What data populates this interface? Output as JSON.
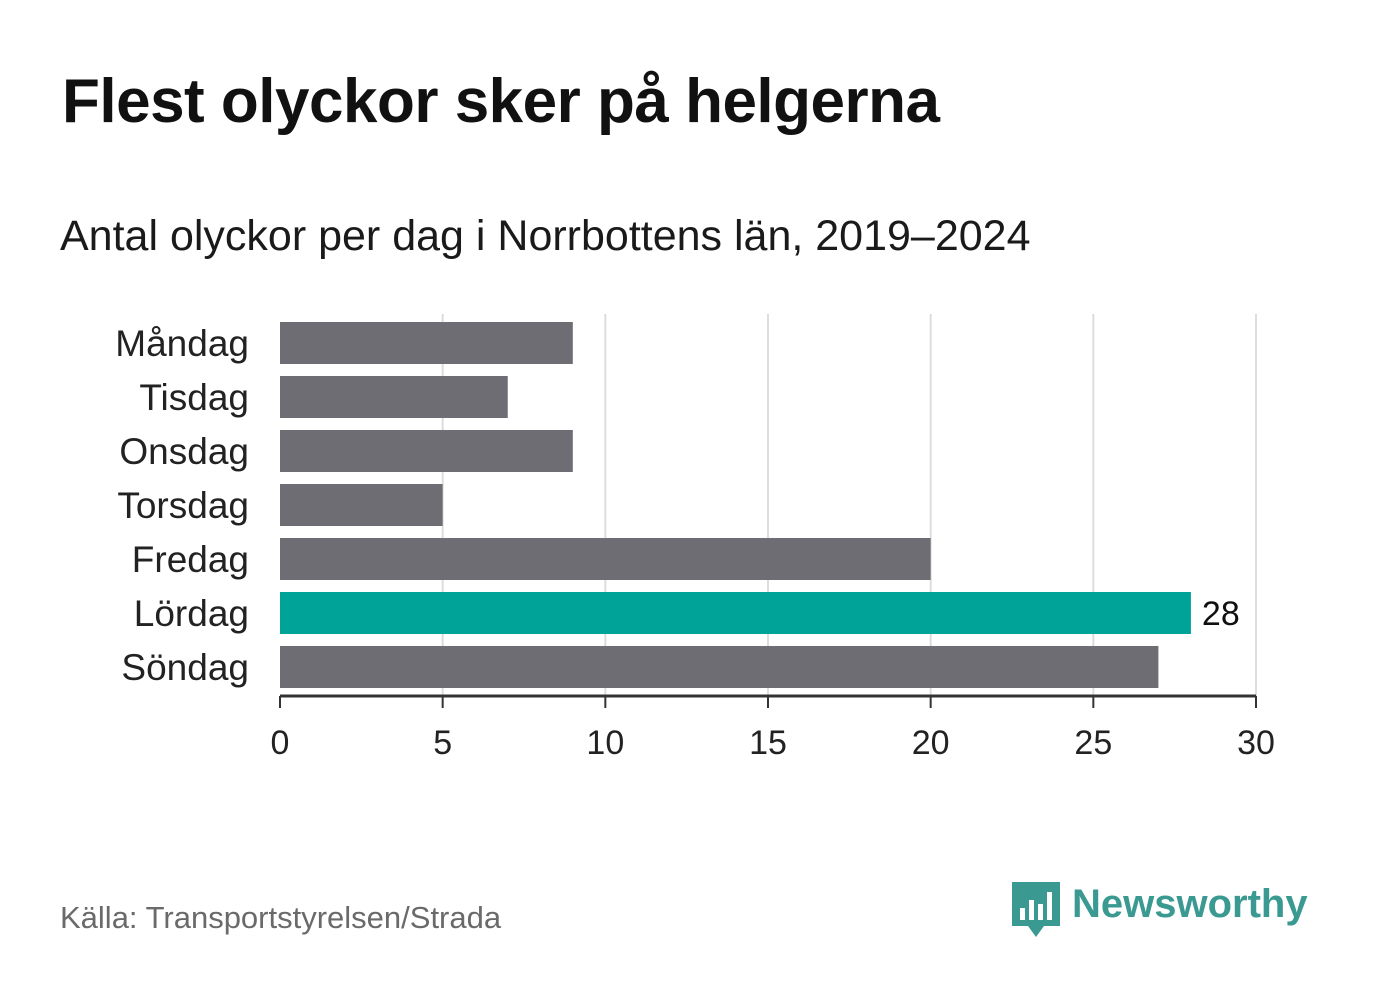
{
  "title": "Flest olyckor sker på helgerna",
  "subtitle": "Antal olyckor per dag i Norrbottens län, 2019–2024",
  "source": "Källa: Transportstyrelsen/Strada",
  "brand": {
    "name": "Newsworthy",
    "icon": "newsworthy-bar-chart-bubble-icon",
    "color": "#3a9991"
  },
  "colors": {
    "default_bar": "#6e6d73",
    "highlight_bar": "#00a398",
    "grid": "#dddddd",
    "axis": "#333333"
  },
  "chart_data": {
    "type": "bar",
    "orientation": "horizontal",
    "categories": [
      "Måndag",
      "Tisdag",
      "Onsdag",
      "Torsdag",
      "Fredag",
      "Lördag",
      "Söndag"
    ],
    "values": [
      9,
      7,
      9,
      5,
      20,
      28,
      27
    ],
    "highlight": "Lördag",
    "data_labels": [
      {
        "category": "Lördag",
        "text": "28"
      }
    ],
    "xlim": [
      0,
      30
    ],
    "xticks": [
      "0",
      "5",
      "10",
      "15",
      "20",
      "25",
      "30"
    ],
    "grid": true,
    "xlabel": "",
    "ylabel": ""
  }
}
